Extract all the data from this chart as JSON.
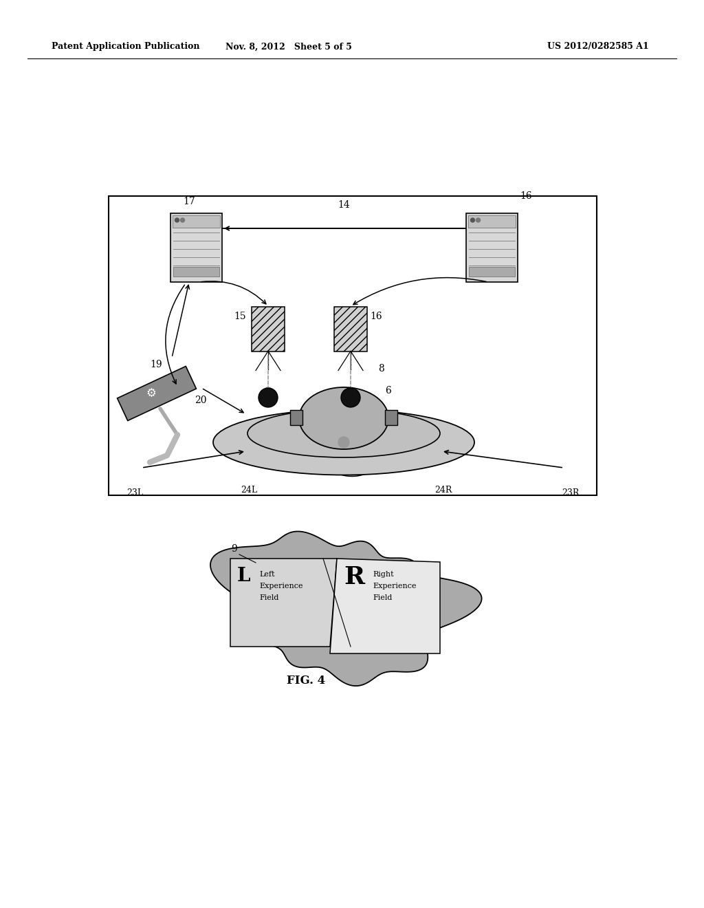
{
  "header_left": "Patent Application Publication",
  "header_center": "Nov. 8, 2012   Sheet 5 of 5",
  "header_right": "US 2012/0282585 A1",
  "fig_label": "FIG. 4",
  "bg_color": "#ffffff",
  "box_color": "#000000",
  "gray_comp": "#d5d5d5",
  "gray_proj": "#c8c8c8",
  "gray_plat": "#c0c0c0",
  "gray_head": "#b0b0b0",
  "gray_brain": "#aaaaaa",
  "gray_wing": "#c5c5c5",
  "gray_field_l": "#d8d8d8",
  "gray_field_r": "#e5e5e5"
}
